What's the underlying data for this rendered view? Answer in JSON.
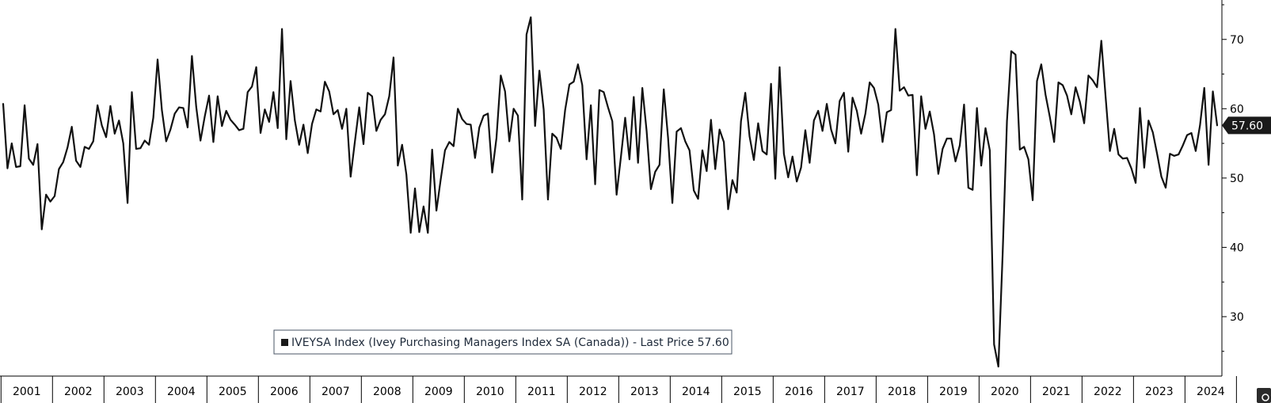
{
  "chart_data": {
    "type": "line",
    "series": [
      {
        "name": "IVEYSA Index (Ivey Purchasing Managers Index SA (Canada)) - Last Price 57.60",
        "color": "#000000",
        "start": "2001-01",
        "frequency": "monthly",
        "values": [
          60.7,
          51.4,
          55.0,
          51.6,
          51.7,
          60.5,
          52.8,
          51.9,
          54.9,
          42.6,
          47.6,
          46.6,
          47.4,
          51.3,
          52.3,
          54.4,
          57.4,
          52.5,
          51.6,
          54.5,
          54.2,
          55.3,
          60.5,
          57.6,
          55.9,
          60.4,
          56.4,
          58.3,
          55.0,
          46.4,
          62.4,
          54.2,
          54.3,
          55.4,
          54.8,
          58.7,
          67.1,
          59.8,
          55.3,
          57.0,
          59.3,
          60.2,
          60.1,
          57.3,
          67.6,
          60.3,
          55.4,
          58.9,
          61.9,
          55.2,
          61.8,
          57.5,
          59.7,
          58.4,
          57.7,
          56.9,
          57.1,
          62.4,
          63.2,
          66.0,
          56.5,
          59.9,
          58.1,
          62.4,
          57.2,
          71.5,
          55.6,
          64.0,
          58.3,
          54.8,
          57.7,
          53.6,
          57.8,
          59.9,
          59.6,
          63.9,
          62.5,
          59.2,
          59.8,
          57.1,
          60.0,
          50.2,
          55.3,
          60.2,
          54.9,
          62.3,
          61.8,
          56.8,
          58.4,
          59.2,
          61.8,
          67.4,
          51.8,
          54.8,
          50.5,
          42.1,
          48.5,
          42.2,
          45.9,
          42.1,
          54.1,
          45.3,
          49.8,
          54.0,
          55.2,
          54.6,
          60.0,
          58.5,
          57.8,
          57.7,
          52.9,
          57.3,
          59.0,
          59.3,
          50.8,
          55.8,
          64.8,
          62.5,
          55.3,
          60.0,
          59.0,
          46.9,
          70.7,
          73.2,
          57.5,
          65.5,
          59.9,
          46.9,
          56.4,
          55.8,
          54.2,
          59.8,
          63.5,
          63.9,
          66.4,
          63.4,
          52.7,
          60.5,
          49.1,
          62.7,
          62.4,
          60.2,
          58.2,
          47.6,
          53.0,
          58.7,
          52.7,
          61.7,
          52.2,
          63.0,
          56.8,
          48.4,
          50.9,
          51.9,
          62.8,
          55.8,
          46.4,
          56.7,
          57.2,
          55.3,
          54.0,
          48.2,
          47.0,
          54.0,
          51.0,
          58.4,
          51.3,
          57.0,
          55.2,
          45.5,
          49.7,
          47.9,
          58.2,
          62.3,
          56.0,
          52.6,
          57.9,
          53.9,
          53.4,
          63.6,
          49.9,
          66.0,
          53.5,
          50.1,
          53.1,
          49.5,
          51.5,
          56.9,
          52.2,
          58.3,
          59.7,
          56.8,
          60.7,
          57.0,
          55.0,
          61.1,
          62.3,
          53.8,
          61.6,
          59.7,
          56.4,
          59.3,
          63.8,
          63.0,
          60.6,
          55.2,
          59.5,
          59.8,
          71.5,
          62.6,
          63.1,
          61.9,
          62.0,
          50.4,
          61.8,
          57.1,
          59.6,
          56.3,
          50.6,
          54.2,
          55.7,
          55.7,
          52.4,
          54.7,
          60.6,
          48.6,
          48.3,
          60.1,
          51.8,
          57.2,
          54.0,
          26.0,
          22.8,
          39.1,
          58.2,
          68.3,
          67.8,
          54.1,
          54.5,
          52.7,
          46.8,
          64.0,
          66.4,
          62.0,
          58.8,
          55.2,
          63.8,
          63.4,
          61.9,
          59.2,
          63.1,
          61.0,
          57.9,
          64.8,
          64.1,
          63.1,
          69.8,
          61.7,
          53.9,
          57.1,
          53.4,
          52.8,
          52.9,
          51.4,
          49.3,
          60.1,
          51.5,
          58.3,
          56.6,
          53.5,
          50.2,
          48.6,
          53.5,
          53.2,
          53.4,
          54.7,
          56.2,
          56.5,
          53.9,
          57.6,
          63.0,
          51.9,
          62.5,
          57.6
        ]
      }
    ],
    "x_tick_labels": [
      "2001",
      "2002",
      "2003",
      "2004",
      "2005",
      "2006",
      "2007",
      "2008",
      "2009",
      "2010",
      "2011",
      "2012",
      "2013",
      "2014",
      "2015",
      "2016",
      "2017",
      "2018",
      "2019",
      "2020",
      "2021",
      "2022",
      "2023",
      "2024"
    ],
    "y_tick_labels": [
      "70",
      "60",
      "50",
      "40",
      "30"
    ],
    "y_ticks": [
      70,
      60,
      50,
      40,
      30
    ],
    "ylim": [
      22,
      75
    ],
    "y_axis_side": "right",
    "last_value_label": "57.60",
    "legend": {
      "text": "IVEYSA Index (Ivey Purchasing Managers Index SA (Canada)) - Last Price 57.60",
      "placement": "bottom-center"
    },
    "grid": false,
    "title": "",
    "xlabel": "",
    "ylabel": ""
  }
}
